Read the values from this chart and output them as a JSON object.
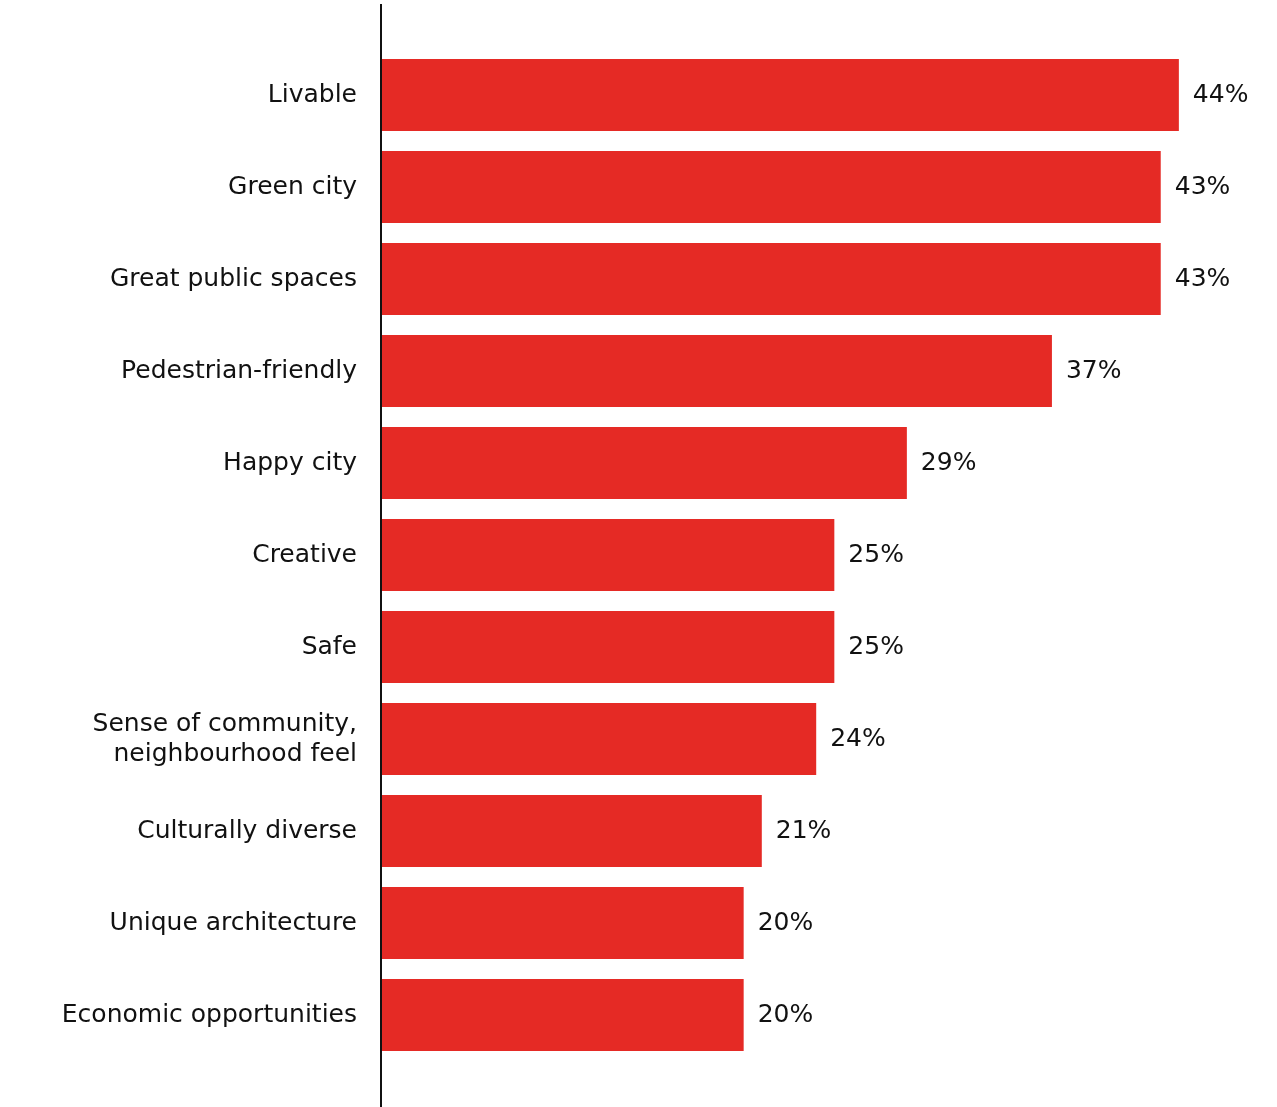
{
  "chart_data": {
    "type": "bar",
    "orientation": "horizontal",
    "categories": [
      "Livable",
      "Green city",
      "Great public spaces",
      "Pedestrian-friendly",
      "Happy city",
      "Creative",
      "Safe",
      "Sense of community, neighbourhood feel",
      "Culturally diverse",
      "Unique architecture",
      "Economic opportunities"
    ],
    "values": [
      44,
      43,
      43,
      37,
      29,
      25,
      25,
      24,
      21,
      20,
      20
    ],
    "value_labels": [
      "44%",
      "43%",
      "43%",
      "37%",
      "29%",
      "25%",
      "25%",
      "24%",
      "21%",
      "20%",
      "20%"
    ],
    "color": "#e52a25",
    "tick_labels": "y",
    "legend": false
  }
}
